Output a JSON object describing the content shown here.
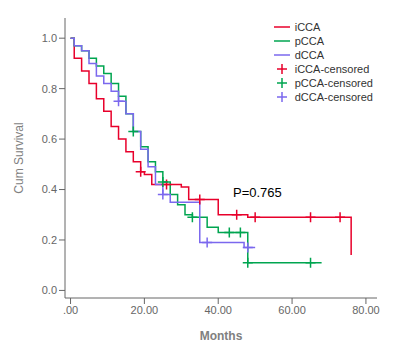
{
  "chart_data": {
    "type": "line",
    "xlabel": "Months",
    "ylabel": "Cum Survival",
    "xlim": [
      -1.5,
      83
    ],
    "ylim": [
      -0.03,
      1.08
    ],
    "xticks": [
      {
        "value": 0,
        "label": ".00"
      },
      {
        "value": 20,
        "label": "20.00"
      },
      {
        "value": 40,
        "label": "40.00"
      },
      {
        "value": 60,
        "label": "60.00"
      },
      {
        "value": 80,
        "label": "80.00"
      }
    ],
    "yticks": [
      {
        "value": 0.0,
        "label": "0.0"
      },
      0.2,
      0.4,
      0.6,
      0.8,
      {
        "value": 1.0,
        "label": "1.0"
      }
    ],
    "grid": false,
    "legend": "upper right",
    "annotations": [
      {
        "text": "P=0.765",
        "x": 44,
        "y": 0.37
      }
    ],
    "series": [
      {
        "name": "iCCA",
        "type": "line",
        "line_style": "step",
        "color": "#E8002B",
        "x": [
          0,
          1,
          3,
          5,
          7,
          9,
          11,
          13,
          15,
          17,
          19,
          20,
          22,
          24,
          26,
          28,
          30,
          32,
          35,
          37,
          40,
          45,
          48,
          55,
          60,
          65,
          72,
          76
        ],
        "values": [
          1.0,
          0.92,
          0.87,
          0.82,
          0.76,
          0.71,
          0.65,
          0.6,
          0.55,
          0.51,
          0.47,
          0.46,
          0.42,
          0.42,
          0.42,
          0.42,
          0.41,
          0.36,
          0.36,
          0.36,
          0.3,
          0.3,
          0.29,
          0.29,
          0.29,
          0.29,
          0.29,
          0.14
        ]
      },
      {
        "name": "pCCA",
        "type": "line",
        "line_style": "step",
        "color": "#00A550",
        "x": [
          0,
          1,
          3,
          5,
          7,
          9,
          11,
          13,
          15,
          17,
          19,
          21,
          23,
          25,
          27,
          29,
          31,
          33,
          35,
          37,
          40,
          43,
          46,
          48,
          55,
          60,
          65,
          68
        ],
        "values": [
          1.0,
          0.97,
          0.95,
          0.92,
          0.89,
          0.86,
          0.82,
          0.77,
          0.7,
          0.63,
          0.57,
          0.51,
          0.47,
          0.43,
          0.38,
          0.34,
          0.3,
          0.29,
          0.29,
          0.25,
          0.23,
          0.23,
          0.23,
          0.11,
          0.11,
          0.11,
          0.11,
          0.11
        ]
      },
      {
        "name": "dCCA",
        "type": "line",
        "line_style": "step",
        "color": "#7B68EE",
        "x": [
          0,
          1,
          3,
          5,
          7,
          9,
          11,
          13,
          15,
          17,
          19,
          21,
          23,
          25,
          27,
          30,
          33,
          35,
          37,
          40,
          44,
          47,
          50
        ],
        "values": [
          1.0,
          0.97,
          0.95,
          0.9,
          0.85,
          0.82,
          0.79,
          0.75,
          0.7,
          0.63,
          0.56,
          0.49,
          0.42,
          0.38,
          0.35,
          0.35,
          0.35,
          0.19,
          0.19,
          0.19,
          0.19,
          0.17,
          0.17
        ]
      },
      {
        "name": "iCCA-censored",
        "type": "scatter",
        "marker": "plus",
        "color": "#E8002B",
        "x": [
          19,
          26,
          35,
          45,
          50,
          65,
          73
        ],
        "values": [
          0.47,
          0.42,
          0.36,
          0.3,
          0.29,
          0.29,
          0.29
        ]
      },
      {
        "name": "pCCA-censored",
        "type": "scatter",
        "marker": "plus",
        "color": "#00A550",
        "x": [
          17,
          25,
          33,
          43,
          46,
          48,
          65
        ],
        "values": [
          0.63,
          0.43,
          0.29,
          0.23,
          0.23,
          0.11,
          0.11
        ]
      },
      {
        "name": "dCCA-censored",
        "type": "scatter",
        "marker": "plus",
        "color": "#7B68EE",
        "x": [
          13,
          25,
          37,
          48
        ],
        "values": [
          0.75,
          0.38,
          0.19,
          0.17
        ]
      }
    ]
  }
}
